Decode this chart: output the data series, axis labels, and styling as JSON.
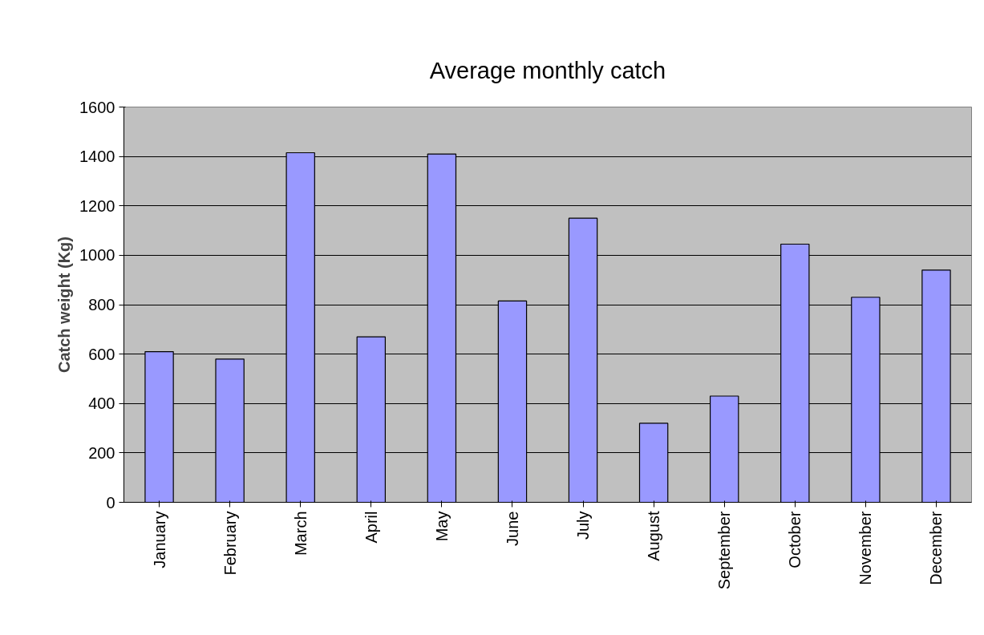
{
  "chart_data": {
    "type": "bar",
    "title": "Average monthly catch",
    "ylabel": "Catch weight (Kg)",
    "categories": [
      "January",
      "February",
      "March",
      "April",
      "May",
      "June",
      "July",
      "August",
      "September",
      "October",
      "November",
      "December"
    ],
    "values": [
      610,
      580,
      1415,
      670,
      1410,
      815,
      1150,
      320,
      430,
      1045,
      830,
      940
    ],
    "color": "#9999ff",
    "ylim": [
      0,
      1600
    ],
    "yticks": [
      0,
      200,
      400,
      600,
      800,
      1000,
      1200,
      1400,
      1600
    ],
    "grid": "y"
  }
}
